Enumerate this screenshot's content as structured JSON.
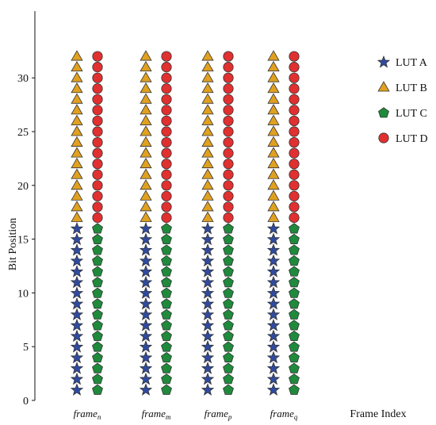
{
  "chart_data": {
    "type": "scatter",
    "title": "",
    "xlabel": "Frame Index",
    "ylabel": "Bit Position",
    "ylim": [
      0,
      36
    ],
    "yticks": [
      0,
      5,
      10,
      15,
      20,
      25,
      30
    ],
    "grid": false,
    "legend_position": "top-right",
    "frames": [
      {
        "base": "frame",
        "sub": "n"
      },
      {
        "base": "frame",
        "sub": "m"
      },
      {
        "base": "frame",
        "sub": "p"
      },
      {
        "base": "frame",
        "sub": "q"
      }
    ],
    "series": [
      {
        "name": "LUT A",
        "marker": "star",
        "color": "#2f4ba0",
        "column": "left",
        "bits": [
          1,
          16
        ]
      },
      {
        "name": "LUT B",
        "marker": "triangle",
        "color": "#e0a020",
        "column": "left",
        "bits": [
          17,
          32
        ]
      },
      {
        "name": "LUT C",
        "marker": "pentagon",
        "color": "#1f8a3c",
        "column": "right",
        "bits": [
          1,
          16
        ]
      },
      {
        "name": "LUT D",
        "marker": "circle",
        "color": "#e03030",
        "column": "right",
        "bits": [
          17,
          32
        ]
      }
    ]
  }
}
